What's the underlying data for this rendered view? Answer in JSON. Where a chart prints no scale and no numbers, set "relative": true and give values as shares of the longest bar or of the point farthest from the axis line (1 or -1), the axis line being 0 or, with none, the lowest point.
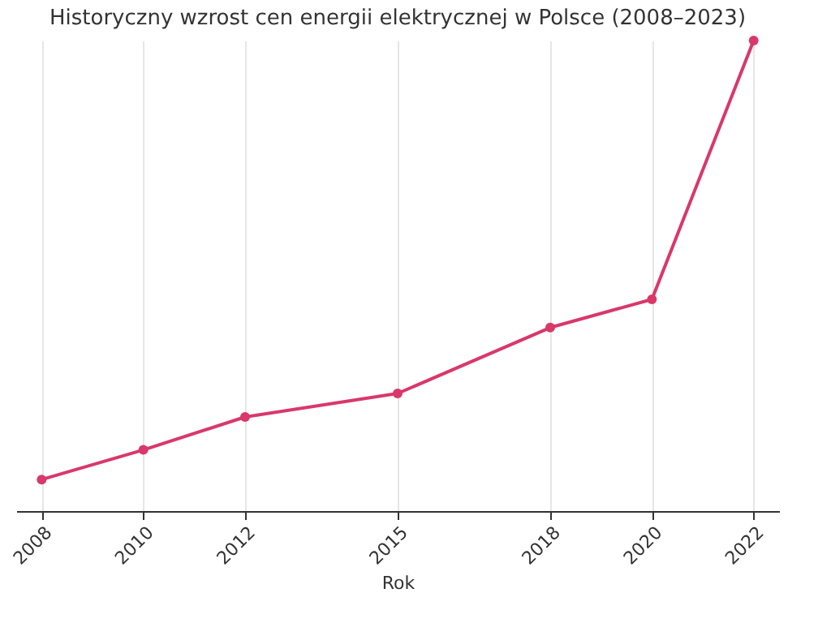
{
  "chart_data": {
    "type": "line",
    "title": "Historyczny wzrost cen energii elektrycznej w Polsce (2008–2023)",
    "xlabel": "Rok",
    "x": [
      2008,
      2010,
      2012,
      2015,
      2018,
      2020,
      2022
    ],
    "series": [
      {
        "color": "#d9386a",
        "values": [
          0.067,
          0.13,
          0.2,
          0.25,
          0.39,
          0.45,
          1
        ]
      }
    ],
    "relative": true,
    "xlim": [
      2007.5,
      2022.5
    ],
    "xticks": [
      2008,
      2010,
      2012,
      2015,
      2018,
      2020,
      2022
    ],
    "grid": "x",
    "marker": "circle",
    "line_style": "solid"
  }
}
